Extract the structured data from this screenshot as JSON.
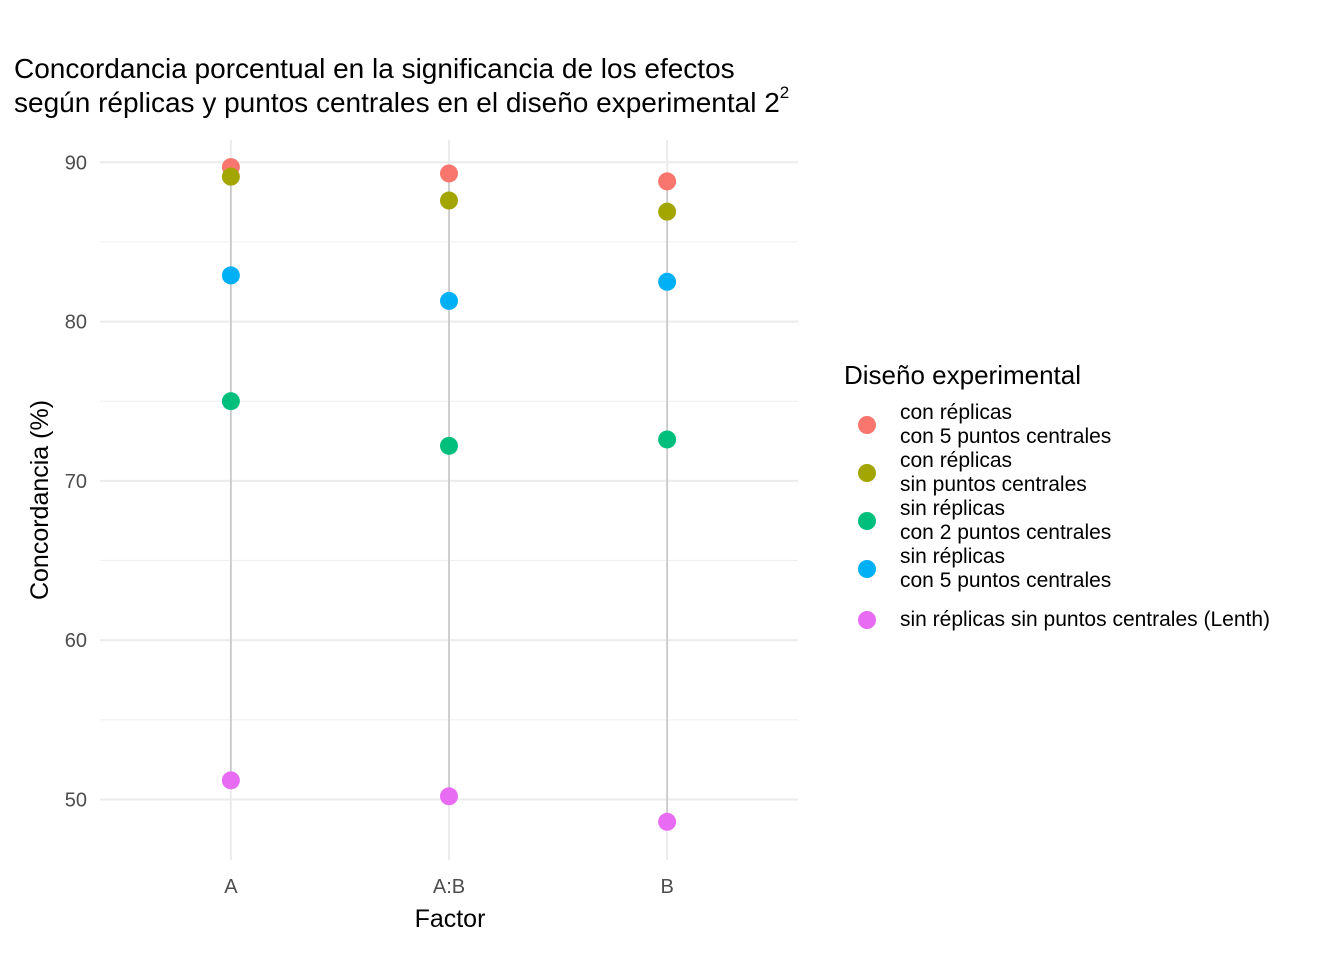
{
  "chart_data": {
    "type": "scatter",
    "title_line1": "Concordancia porcentual en la significancia de los efectos",
    "title_line2": "según réplicas y puntos centrales en el diseño experimental 2",
    "title_superscript": "2",
    "xlabel": "Factor",
    "ylabel": "Concordancia (%)",
    "categories": [
      "A",
      "A:B",
      "B"
    ],
    "ylim": [
      46.2,
      91.4
    ],
    "yticks": [
      50,
      60,
      70,
      80,
      90
    ],
    "grid": true,
    "legend_title": "Diseño experimental",
    "legend_position": "right",
    "series": [
      {
        "name": "con réplicas\ncon 5 puntos centrales",
        "color": "#F8766D",
        "values": [
          89.7,
          89.3,
          88.8
        ]
      },
      {
        "name": "con réplicas\nsin puntos centrales",
        "color": "#A3A500",
        "values": [
          89.1,
          87.6,
          86.9
        ]
      },
      {
        "name": "sin réplicas\ncon 2 puntos centrales",
        "color": "#00BF7D",
        "values": [
          75.0,
          72.2,
          72.6
        ]
      },
      {
        "name": "sin réplicas\ncon 5 puntos centrales",
        "color": "#00B0F6",
        "values": [
          82.9,
          81.3,
          82.5
        ]
      },
      {
        "name": "sin réplicas sin puntos centrales (Lenth)",
        "color": "#E76BF3",
        "values": [
          51.2,
          50.2,
          48.6
        ]
      }
    ]
  }
}
